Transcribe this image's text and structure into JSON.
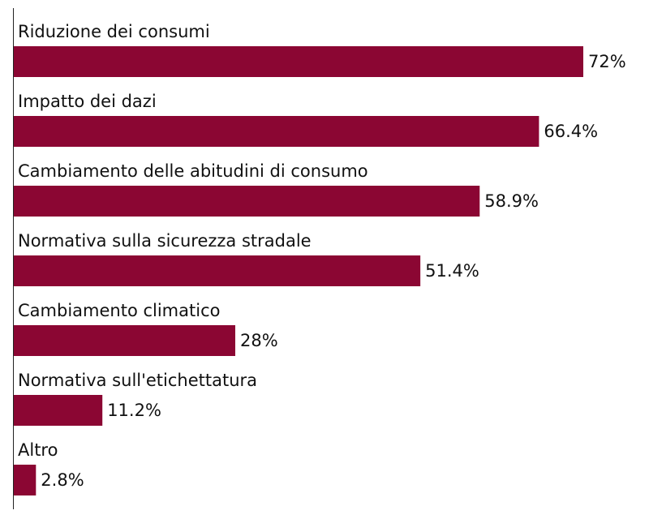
{
  "chart_data": {
    "type": "bar",
    "orientation": "horizontal",
    "color": "#8b0633",
    "categories": [
      "Riduzione dei consumi",
      "Impatto dei dazi",
      "Cambiamento delle abitudini di consumo",
      "Normativa sulla sicurezza stradale",
      "Cambiamento climatico",
      "Normativa sull'etichettatura",
      "Altro"
    ],
    "values": [
      72,
      66.4,
      58.9,
      51.4,
      28,
      11.2,
      2.8
    ],
    "value_labels": [
      "72%",
      "66.4%",
      "58.9%",
      "51.4%",
      "28%",
      "11.2%",
      "2.8%"
    ]
  }
}
